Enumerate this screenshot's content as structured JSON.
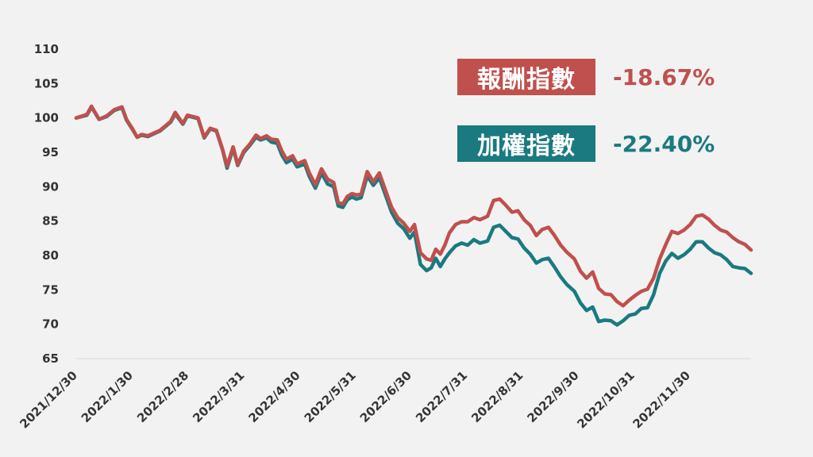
{
  "chart_data": {
    "type": "line",
    "xlabel": "",
    "ylabel": "",
    "ylim": [
      65,
      110
    ],
    "yticks": [
      "65",
      "70",
      "75",
      "80",
      "85",
      "90",
      "95",
      "100",
      "105",
      "110"
    ],
    "xticks": [
      "2021/12/30",
      "2022/1/30",
      "2022/2/28",
      "2022/3/31",
      "2022/4/30",
      "2022/5/31",
      "2022/6/30",
      "2022/7/31",
      "2022/8/31",
      "2022/9/30",
      "2022/10/31",
      "2022/11/30"
    ],
    "series": [
      {
        "name": "報酬指數",
        "color": "#c0504d",
        "change": "-18.67%",
        "points": [
          [
            0,
            100
          ],
          [
            7,
            100.5
          ],
          [
            10,
            101.7
          ],
          [
            15,
            99.8
          ],
          [
            20,
            100.3
          ],
          [
            25,
            101.2
          ],
          [
            30,
            101.6
          ],
          [
            33,
            99.8
          ],
          [
            37,
            98.4
          ],
          [
            40,
            97.2
          ],
          [
            43,
            97.6
          ],
          [
            47,
            97.4
          ],
          [
            55,
            98.2
          ],
          [
            62,
            99.5
          ],
          [
            65,
            100.8
          ],
          [
            70,
            99.2
          ],
          [
            73,
            100.4
          ],
          [
            80,
            100
          ],
          [
            84,
            97.2
          ],
          [
            88,
            98.5
          ],
          [
            92,
            98.2
          ],
          [
            96,
            95.5
          ],
          [
            99,
            93
          ],
          [
            103,
            95.8
          ],
          [
            106,
            93.2
          ],
          [
            110,
            95.2
          ],
          [
            114,
            96.2
          ],
          [
            118,
            97.5
          ],
          [
            121,
            97
          ],
          [
            125,
            97.4
          ],
          [
            128,
            96.9
          ],
          [
            132,
            96.8
          ],
          [
            135,
            95.2
          ],
          [
            138,
            94
          ],
          [
            142,
            94.5
          ],
          [
            145,
            93.3
          ],
          [
            150,
            93.8
          ],
          [
            153,
            92
          ],
          [
            157,
            90.3
          ],
          [
            161,
            92.6
          ],
          [
            165,
            91.1
          ],
          [
            169,
            90.6
          ],
          [
            172,
            87.7
          ],
          [
            175,
            87.5
          ],
          [
            178,
            88.6
          ],
          [
            181,
            89
          ],
          [
            184,
            88.8
          ],
          [
            187,
            88.9
          ],
          [
            191,
            92.2
          ],
          [
            195,
            90.7
          ],
          [
            199,
            92
          ],
          [
            203,
            89.5
          ],
          [
            207,
            87
          ],
          [
            211,
            85.5
          ],
          [
            215,
            84.7
          ],
          [
            219,
            83.5
          ],
          [
            222,
            84.5
          ],
          [
            226,
            80.4
          ],
          [
            230,
            79.5
          ],
          [
            233,
            79.3
          ],
          [
            236,
            80.9
          ],
          [
            239,
            80.2
          ],
          [
            242,
            81.5
          ],
          [
            245,
            83.3
          ],
          [
            249,
            84.5
          ],
          [
            253,
            84.9
          ],
          [
            257,
            84.9
          ],
          [
            261,
            85.5
          ],
          [
            265,
            85.2
          ],
          [
            270,
            85.7
          ],
          [
            274,
            88
          ],
          [
            278,
            88.2
          ],
          [
            282,
            87.3
          ],
          [
            286,
            86.3
          ],
          [
            290,
            86.5
          ],
          [
            294,
            85.2
          ],
          [
            298,
            84.4
          ],
          [
            302,
            82.9
          ],
          [
            306,
            83.8
          ],
          [
            310,
            84.1
          ],
          [
            314,
            82.9
          ],
          [
            318,
            81.5
          ],
          [
            322,
            80.5
          ],
          [
            327,
            79.5
          ],
          [
            331,
            77.7
          ],
          [
            335,
            76.7
          ],
          [
            339,
            77.6
          ],
          [
            343,
            75.2
          ],
          [
            347,
            74.4
          ],
          [
            351,
            74.3
          ],
          [
            355,
            73.3
          ],
          [
            359,
            72.7
          ],
          [
            363,
            73.5
          ],
          [
            367,
            74.2
          ],
          [
            371,
            74.8
          ],
          [
            375,
            75.1
          ],
          [
            379,
            76.7
          ],
          [
            383,
            79.5
          ],
          [
            387,
            81.6
          ],
          [
            391,
            83.5
          ],
          [
            395,
            83.2
          ],
          [
            399,
            83.7
          ],
          [
            403,
            84.5
          ],
          [
            407,
            85.7
          ],
          [
            411,
            85.9
          ],
          [
            415,
            85.3
          ],
          [
            419,
            84.4
          ],
          [
            423,
            83.7
          ],
          [
            427,
            83.4
          ],
          [
            431,
            82.6
          ],
          [
            435,
            82
          ],
          [
            439,
            81.6
          ],
          [
            443,
            80.8
          ]
        ]
      },
      {
        "name": "加權指數",
        "color": "#1a7a80",
        "change": "-22.40%",
        "points": [
          [
            0,
            100
          ],
          [
            7,
            100.4
          ],
          [
            10,
            101.6
          ],
          [
            15,
            99.8
          ],
          [
            20,
            100.2
          ],
          [
            25,
            101.1
          ],
          [
            30,
            101.5
          ],
          [
            33,
            99.7
          ],
          [
            37,
            98.3
          ],
          [
            40,
            97.2
          ],
          [
            43,
            97.5
          ],
          [
            47,
            97.3
          ],
          [
            55,
            98.1
          ],
          [
            62,
            99.4
          ],
          [
            65,
            100.6
          ],
          [
            70,
            99.1
          ],
          [
            73,
            100.3
          ],
          [
            80,
            99.9
          ],
          [
            84,
            97.1
          ],
          [
            88,
            98.4
          ],
          [
            92,
            98.1
          ],
          [
            96,
            95.4
          ],
          [
            99,
            92.7
          ],
          [
            103,
            95.6
          ],
          [
            106,
            93.1
          ],
          [
            110,
            95
          ],
          [
            114,
            96
          ],
          [
            118,
            97.2
          ],
          [
            121,
            96.8
          ],
          [
            125,
            97.1
          ],
          [
            128,
            96.5
          ],
          [
            132,
            96.3
          ],
          [
            135,
            94.6
          ],
          [
            138,
            93.5
          ],
          [
            142,
            94
          ],
          [
            145,
            92.9
          ],
          [
            150,
            93.3
          ],
          [
            153,
            91.5
          ],
          [
            157,
            89.8
          ],
          [
            161,
            92
          ],
          [
            165,
            90.4
          ],
          [
            169,
            90
          ],
          [
            172,
            87.2
          ],
          [
            175,
            87
          ],
          [
            178,
            88.1
          ],
          [
            181,
            88.5
          ],
          [
            184,
            88.2
          ],
          [
            187,
            88.4
          ],
          [
            191,
            91.6
          ],
          [
            195,
            90.2
          ],
          [
            199,
            91.3
          ],
          [
            203,
            88.8
          ],
          [
            207,
            86.3
          ],
          [
            211,
            84.7
          ],
          [
            215,
            83.9
          ],
          [
            219,
            82.5
          ],
          [
            222,
            83.4
          ],
          [
            226,
            78.7
          ],
          [
            230,
            77.8
          ],
          [
            233,
            78.2
          ],
          [
            236,
            79.6
          ],
          [
            239,
            78.4
          ],
          [
            242,
            79.5
          ],
          [
            245,
            80.4
          ],
          [
            249,
            81.4
          ],
          [
            253,
            81.8
          ],
          [
            257,
            81.5
          ],
          [
            261,
            82.3
          ],
          [
            265,
            81.8
          ],
          [
            270,
            82.1
          ],
          [
            274,
            84.1
          ],
          [
            278,
            84.4
          ],
          [
            282,
            83.5
          ],
          [
            286,
            82.6
          ],
          [
            290,
            82.4
          ],
          [
            294,
            81.1
          ],
          [
            298,
            80.2
          ],
          [
            302,
            78.9
          ],
          [
            306,
            79.4
          ],
          [
            310,
            79.6
          ],
          [
            314,
            78.3
          ],
          [
            318,
            76.9
          ],
          [
            322,
            75.8
          ],
          [
            327,
            74.8
          ],
          [
            331,
            73.1
          ],
          [
            335,
            72
          ],
          [
            339,
            72.5
          ],
          [
            343,
            70.4
          ],
          [
            347,
            70.6
          ],
          [
            351,
            70.5
          ],
          [
            355,
            69.9
          ],
          [
            359,
            70.5
          ],
          [
            363,
            71.3
          ],
          [
            367,
            71.5
          ],
          [
            371,
            72.3
          ],
          [
            375,
            72.4
          ],
          [
            379,
            74.3
          ],
          [
            383,
            77.4
          ],
          [
            387,
            79.2
          ],
          [
            391,
            80.3
          ],
          [
            395,
            79.6
          ],
          [
            399,
            80.1
          ],
          [
            403,
            80.9
          ],
          [
            407,
            82
          ],
          [
            411,
            82
          ],
          [
            415,
            81.1
          ],
          [
            419,
            80.4
          ],
          [
            423,
            80.1
          ],
          [
            427,
            79.4
          ],
          [
            431,
            78.4
          ],
          [
            435,
            78.2
          ],
          [
            439,
            78.1
          ],
          [
            443,
            77.4
          ]
        ]
      }
    ]
  },
  "legend": [
    {
      "label": "報酬指數",
      "value": "-18.67%",
      "color": "#c0504d"
    },
    {
      "label": "加權指數",
      "value": "-22.40%",
      "color": "#1a7a80"
    }
  ]
}
